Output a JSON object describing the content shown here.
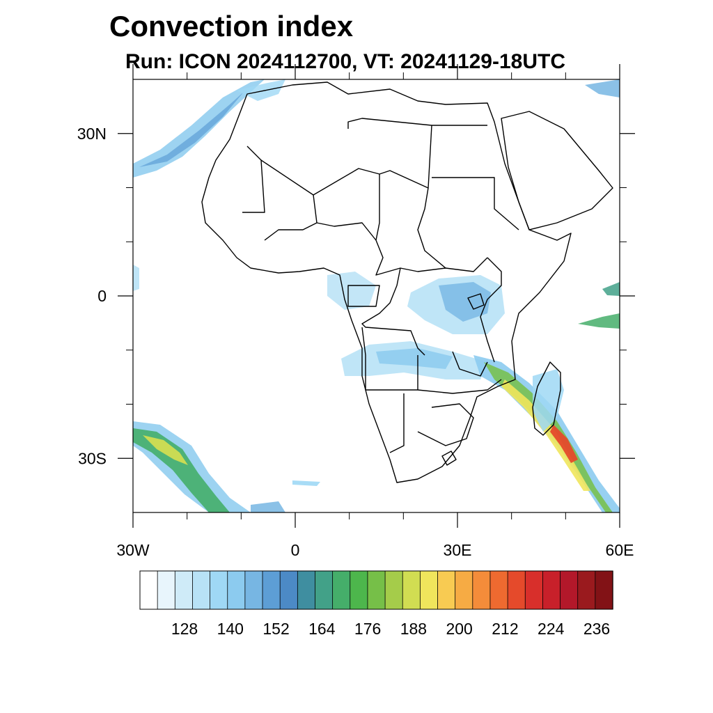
{
  "title": "Convection index",
  "subtitle": "Run: ICON 2024112700,  VT: 20241129-18UTC",
  "map": {
    "lon_range": [
      -30,
      60
    ],
    "lat_range": [
      -40,
      40
    ],
    "lat_labels": [
      {
        "value": 30,
        "label": "30N"
      },
      {
        "value": 0,
        "label": "0"
      },
      {
        "value": -30,
        "label": "30S"
      }
    ],
    "lon_labels": [
      {
        "value": -30,
        "label": "30W"
      },
      {
        "value": 0,
        "label": "0"
      },
      {
        "value": 30,
        "label": "30E"
      },
      {
        "value": 60,
        "label": "60E"
      }
    ],
    "minor_lon_ticks": [
      -20,
      -10,
      10,
      20,
      40,
      50
    ],
    "minor_lat_ticks": [
      20,
      10,
      -10,
      -20
    ]
  },
  "colorbar": {
    "colors": [
      "#ffffff",
      "#e8f5fc",
      "#cfebf8",
      "#b8e2f6",
      "#9fd8f5",
      "#8ccbef",
      "#77b6e3",
      "#5d9ed5",
      "#4c8ac6",
      "#3f8ea0",
      "#42a188",
      "#45ae6a",
      "#4db64c",
      "#76bf48",
      "#a5cc4a",
      "#d1dd52",
      "#f0e55c",
      "#f8cb52",
      "#f6ab44",
      "#f48c3a",
      "#ee6a30",
      "#e54a2b",
      "#d82f2b",
      "#c8202a",
      "#b3182a",
      "#9a1a1e",
      "#821216"
    ],
    "labels": [
      "128",
      "140",
      "152",
      "164",
      "176",
      "188",
      "200",
      "212",
      "224",
      "236"
    ]
  }
}
